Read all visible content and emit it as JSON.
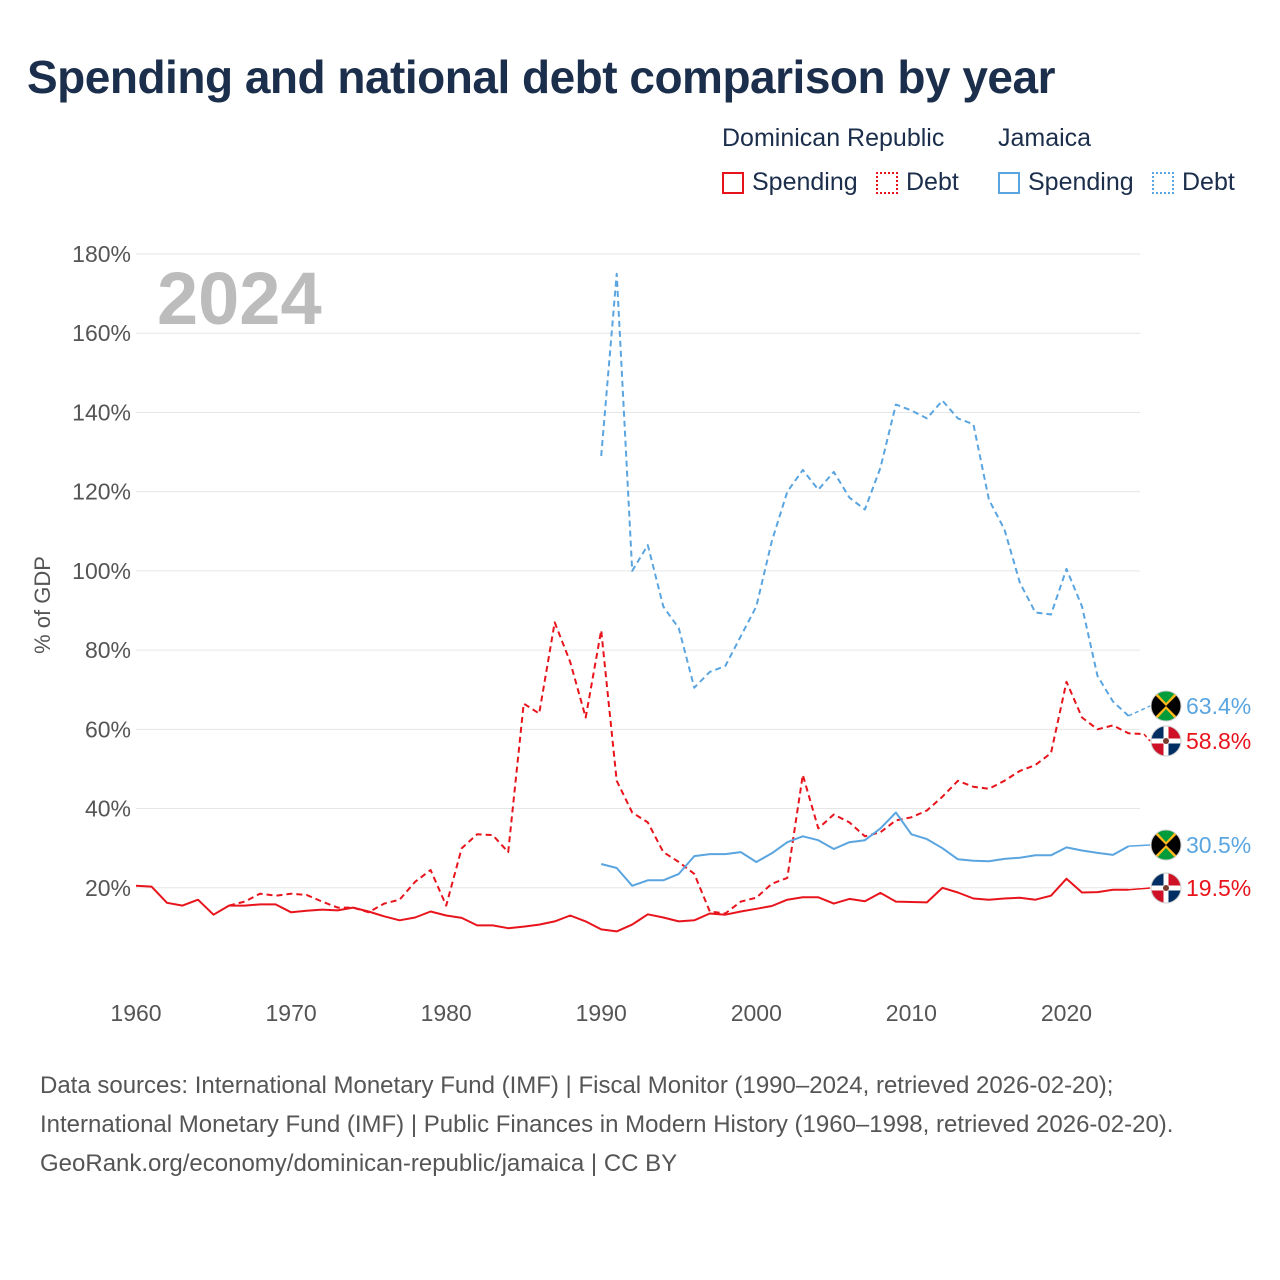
{
  "chart_data": {
    "type": "line",
    "title": "Spending and national debt comparison by year",
    "year_label": "2024",
    "ylabel": "% of GDP",
    "ylim": [
      0,
      180
    ],
    "xlim": [
      1960,
      2025
    ],
    "x_ticks": [
      "1960",
      "1970",
      "1980",
      "1990",
      "2000",
      "2010",
      "2020"
    ],
    "y_ticks": [
      "20%",
      "40%",
      "60%",
      "80%",
      "100%",
      "120%",
      "140%",
      "160%",
      "180%"
    ],
    "legend": {
      "groups": [
        "Dominican Republic",
        "Jamaica"
      ],
      "items": [
        "Spending",
        "Debt",
        "Spending",
        "Debt"
      ]
    },
    "colors": {
      "dominican_republic": "#e8141c",
      "jamaica": "#5aa5e0"
    },
    "series": [
      {
        "name": "Dominican Republic Debt",
        "country": "Dominican Republic",
        "style": "dashed",
        "start_year": 1966,
        "values": [
          15.5,
          16.5,
          18.5,
          18.0,
          18.5,
          18.2,
          16.5,
          15.0,
          15.0,
          13.8,
          16.0,
          17.0,
          21.5,
          24.5,
          15.5,
          30.0,
          33.5,
          33.3,
          29.0,
          66.5,
          64.0,
          87.0,
          77.0,
          63.0,
          85.0,
          47.0,
          39.0,
          36.5,
          29.0,
          26.5,
          23.5,
          14.0,
          13.5,
          16.5,
          17.5,
          21.0,
          22.5,
          48.5,
          35.0,
          38.5,
          36.5,
          33.0,
          34.0,
          37.0,
          37.8,
          39.5,
          43.0,
          47.0,
          45.5,
          45.0,
          47.0,
          49.5,
          51.0,
          54.0,
          72.0,
          63.0,
          60.0,
          61.0,
          59.0,
          58.8
        ],
        "end_label": "58.8%"
      },
      {
        "name": "Dominican Republic Spending",
        "country": "Dominican Republic",
        "style": "solid",
        "start_year": 1960,
        "values": [
          20.5,
          20.3,
          16.2,
          15.5,
          17.0,
          13.2,
          15.5,
          15.5,
          15.8,
          15.8,
          13.8,
          14.2,
          14.5,
          14.3,
          15.0,
          14.0,
          12.8,
          11.8,
          12.5,
          14.0,
          13.0,
          12.4,
          10.5,
          10.5,
          9.8,
          10.2,
          10.7,
          11.5,
          13.0,
          11.5,
          9.5,
          9.0,
          10.7,
          13.3,
          12.5,
          11.5,
          11.8,
          13.5,
          13.2,
          14.0,
          14.7,
          15.4,
          17.0,
          17.6,
          17.6,
          16.0,
          17.2,
          16.6,
          18.7,
          16.5,
          16.4,
          16.3,
          20.0,
          18.8,
          17.3,
          17.0,
          17.3,
          17.5,
          17.0,
          18.0,
          22.3,
          18.8,
          18.9,
          19.5,
          19.5
        ],
        "end_label": "19.5%"
      },
      {
        "name": "Jamaica Debt",
        "country": "Jamaica",
        "style": "dashed",
        "start_year": 1990,
        "values": [
          129,
          175,
          100,
          106.5,
          91,
          85.5,
          70.5,
          74.5,
          76,
          83.5,
          91,
          107.5,
          120,
          125.5,
          120.5,
          125,
          118.5,
          115.5,
          126,
          142,
          140.5,
          138.5,
          143,
          138.5,
          137,
          118,
          110.5,
          97,
          89.5,
          89,
          100.5,
          91,
          73.5,
          67,
          63.4
        ],
        "end_label": "63.4%"
      },
      {
        "name": "Jamaica Spending",
        "country": "Jamaica",
        "style": "solid",
        "start_year": 1990,
        "values": [
          26,
          25,
          20.5,
          21.9,
          21.9,
          23.5,
          28,
          28.5,
          28.5,
          29,
          26.5,
          28.7,
          31.5,
          33,
          32,
          29.8,
          31.5,
          32,
          35,
          39,
          33.5,
          32.3,
          30,
          27.2,
          26.8,
          26.7,
          27.3,
          27.6,
          28.2,
          28.2,
          30.2,
          29.4,
          28.8,
          28.3,
          30.5
        ],
        "end_label": "30.5%"
      }
    ]
  },
  "footer": {
    "sources": "Data sources: International Monetary Fund (IMF) | Fiscal Monitor (1990–2024, retrieved 2026-02-20); International Monetary Fund (IMF) | Public Finances in Modern History (1960–1998, retrieved 2026-02-20).",
    "credit": "GeoRank.org/economy/dominican-republic/jamaica | CC BY"
  }
}
